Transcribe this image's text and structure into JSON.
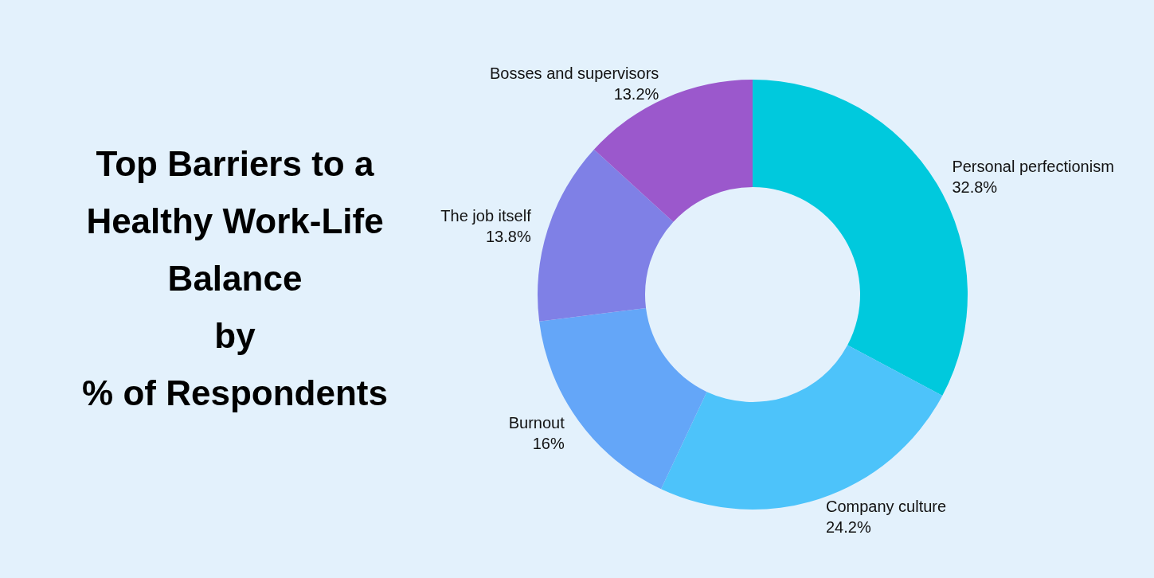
{
  "chart_data": {
    "type": "donut",
    "title": "Top Barriers to a\nHealthy Work-Life\nBalance\nby\n% of Respondents",
    "categories": [
      "Personal perfectionism",
      "Company culture",
      "Burnout",
      "The job itself",
      "Bosses and supervisors"
    ],
    "values": [
      32.8,
      24.2,
      16,
      13.8,
      13.2
    ],
    "colors": [
      "#00c9dd",
      "#4dc3fa",
      "#64a6f8",
      "#7f80e6",
      "#9b58cc"
    ],
    "value_labels": [
      "32.8%",
      "24.2%",
      "16%",
      "13.8%",
      "13.2%"
    ],
    "legend": false
  }
}
